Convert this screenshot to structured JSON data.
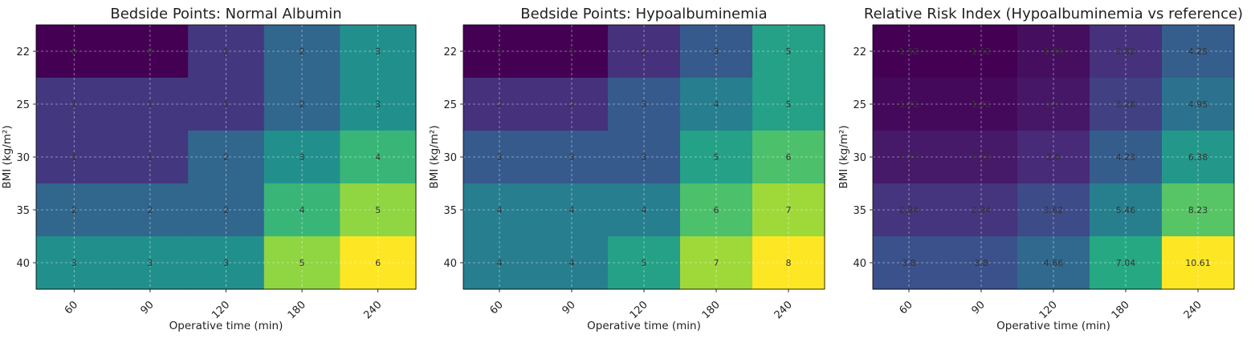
{
  "chart_data": [
    {
      "type": "heatmap",
      "title": "Bedside Points: Normal Albumin",
      "xlabel": "Operative time (min)",
      "ylabel": "BMI (kg/m²)",
      "x_categories": [
        "60",
        "90",
        "120",
        "180",
        "240"
      ],
      "y_categories": [
        "22",
        "25",
        "30",
        "35",
        "40"
      ],
      "values": [
        [
          0,
          0,
          1,
          2,
          3
        ],
        [
          1,
          1,
          1,
          2,
          3
        ],
        [
          1,
          1,
          2,
          3,
          4
        ],
        [
          2,
          2,
          2,
          4,
          5
        ],
        [
          3,
          3,
          3,
          5,
          6
        ]
      ],
      "colormap": "viridis",
      "grid": true
    },
    {
      "type": "heatmap",
      "title": "Bedside Points: Hypoalbuminemia",
      "xlabel": "Operative time (min)",
      "ylabel": "BMI (kg/m²)",
      "x_categories": [
        "60",
        "90",
        "120",
        "180",
        "240"
      ],
      "y_categories": [
        "22",
        "25",
        "30",
        "35",
        "40"
      ],
      "values": [
        [
          1,
          1,
          2,
          3,
          5
        ],
        [
          2,
          2,
          3,
          4,
          5
        ],
        [
          3,
          3,
          3,
          5,
          6
        ],
        [
          4,
          4,
          4,
          6,
          7
        ],
        [
          4,
          4,
          5,
          7,
          8
        ]
      ],
      "colormap": "viridis",
      "grid": true
    },
    {
      "type": "heatmap",
      "title": "Relative Risk Index (Hypoalbuminemia vs reference)",
      "xlabel": "Operative time (min)",
      "ylabel": "BMI (kg/m²)",
      "x_categories": [
        "60",
        "90",
        "120",
        "180",
        "240"
      ],
      "y_categories": [
        "22",
        "25",
        "30",
        "35",
        "40"
      ],
      "values": [
        [
          1.52,
          1.52,
          1.86,
          2.82,
          4.25
        ],
        [
          1.72,
          1.72,
          2.1,
          3.28,
          4.95
        ],
        [
          2.15,
          2.15,
          2.6,
          4.23,
          6.38
        ],
        [
          2.94,
          2.94,
          3.62,
          5.46,
          8.23
        ],
        [
          3.8,
          3.8,
          4.66,
          7.04,
          10.61
        ]
      ],
      "colormap": "viridis",
      "grid": true
    }
  ]
}
